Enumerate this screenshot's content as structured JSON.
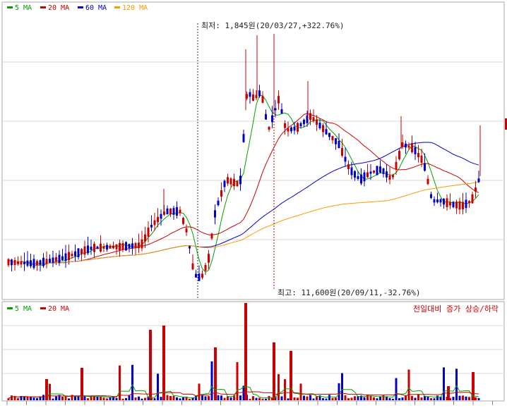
{
  "chart_data": [
    {
      "type": "candlestick",
      "legend": [
        {
          "label": "5 MA",
          "color": "#00a000"
        },
        {
          "label": "20 MA",
          "color": "#cc0000"
        },
        {
          "label": "60 MA",
          "color": "#0000cc"
        },
        {
          "label": "120 MA",
          "color": "#ff9900"
        }
      ],
      "annotations": {
        "low_label": "최저: 1,845원(20/03/27,+322.76%)",
        "high_label": "최고: 11,600원(20/09/11,-32.76%)"
      },
      "colors": {
        "up": "#cc0000",
        "down": "#0000cc",
        "grid": "#d8d8d8",
        "axis": "#888888"
      },
      "grid": true
    },
    {
      "type": "bar",
      "legend": [
        {
          "label": "5 MA",
          "color": "#00a000"
        },
        {
          "label": "20 MA",
          "color": "#cc0000"
        }
      ],
      "side_title": "전일대비 증가 상승/하락",
      "grid": true
    }
  ]
}
